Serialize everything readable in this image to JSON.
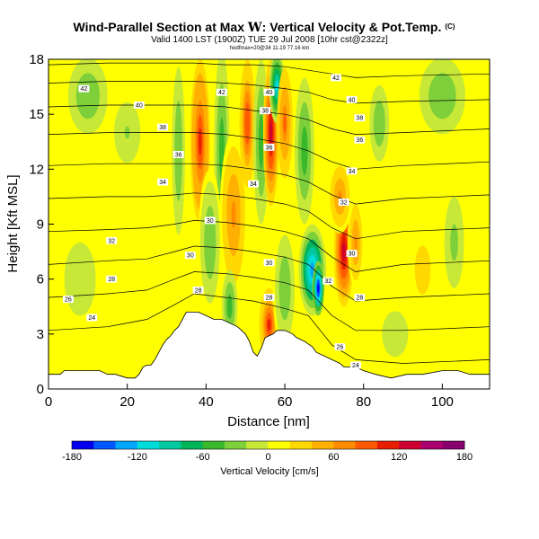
{
  "header": {
    "title_prefix": "Wind-Parallel Section at Max ",
    "title_symbol": "W",
    "title_suffix": ": Vertical Velocity & Pot.Temp.",
    "title_copyright": "(C)",
    "subtitle": "Valid 1400 LST (1900Z) TUE 29 Jul 2008 [10hr cst@2322z]",
    "tiny_line": "hodfmax=20@34 11.19 77.16 km"
  },
  "chart_data": {
    "type": "heatmap",
    "title": "Wind-Parallel Section at Max W: Vertical Velocity & Pot.Temp.",
    "xlabel": "Distance [nm]",
    "ylabel": "Height [Kft MSL]",
    "xlim": [
      0,
      112
    ],
    "ylim": [
      0,
      18
    ],
    "xticks": [
      0,
      20,
      40,
      60,
      80,
      100
    ],
    "yticks": [
      0,
      3,
      6,
      9,
      12,
      15,
      18
    ],
    "xtick_labels": [
      "0",
      "20",
      "40",
      "60",
      "80",
      "100"
    ],
    "ytick_labels": [
      "0",
      "3",
      "6",
      "9",
      "12",
      "15",
      "18"
    ],
    "fill_variable": "Vertical Velocity [cm/s]",
    "colorbar": {
      "label": "Vertical Velocity [cm/s]",
      "min": -180,
      "max": 180,
      "ticks": [
        -180,
        -120,
        -60,
        0,
        60,
        120,
        180
      ],
      "tick_labels": [
        "-180",
        "-120",
        "-60",
        "0",
        "60",
        "120",
        "180"
      ],
      "colors": [
        "#0000ee",
        "#0058ff",
        "#00a6ff",
        "#00dcdc",
        "#00c8a0",
        "#00b45a",
        "#3ab82c",
        "#7ed03a",
        "#c8e838",
        "#ffff00",
        "#ffd800",
        "#ffb000",
        "#ff8c00",
        "#ff5a00",
        "#e81e00",
        "#cc0030",
        "#aa0070",
        "#88006e"
      ]
    },
    "background_value": 8,
    "updrafts_downdrafts": [
      {
        "x": 33,
        "y": 13.0,
        "dx": 2.0,
        "dy": 5.5,
        "value": -40
      },
      {
        "x": 38.5,
        "y": 13.5,
        "dx": 2.5,
        "dy": 4.5,
        "value": 110
      },
      {
        "x": 44,
        "y": 13.0,
        "dx": 2.0,
        "dy": 5.5,
        "value": -50
      },
      {
        "x": 41,
        "y": 8.0,
        "dx": 3.0,
        "dy": 4.0,
        "value": -40
      },
      {
        "x": 47,
        "y": 9.5,
        "dx": 3.5,
        "dy": 4.5,
        "value": 70
      },
      {
        "x": 50.5,
        "y": 14.5,
        "dx": 2.0,
        "dy": 3.5,
        "value": 95
      },
      {
        "x": 54,
        "y": 13.5,
        "dx": 2.0,
        "dy": 4.5,
        "value": -60
      },
      {
        "x": 56.5,
        "y": 14.0,
        "dx": 2.0,
        "dy": 4.0,
        "value": 120
      },
      {
        "x": 58,
        "y": 16.5,
        "dx": 2.0,
        "dy": 2.0,
        "value": -110
      },
      {
        "x": 60,
        "y": 14.5,
        "dx": 2.0,
        "dy": 3.0,
        "value": 80
      },
      {
        "x": 65,
        "y": 13.0,
        "dx": 2.5,
        "dy": 4.0,
        "value": -50
      },
      {
        "x": 67,
        "y": 6.5,
        "dx": 3.5,
        "dy": 2.5,
        "value": -130
      },
      {
        "x": 68.5,
        "y": 5.5,
        "dx": 1.5,
        "dy": 1.5,
        "value": -175
      },
      {
        "x": 75,
        "y": 7.5,
        "dx": 2.5,
        "dy": 3.0,
        "value": 130
      },
      {
        "x": 74,
        "y": 10.5,
        "dx": 3.0,
        "dy": 2.0,
        "value": 70
      },
      {
        "x": 78,
        "y": 8.0,
        "dx": 2.0,
        "dy": 2.5,
        "value": 60
      },
      {
        "x": 56,
        "y": 3.5,
        "dx": 2.5,
        "dy": 2.0,
        "value": 100
      },
      {
        "x": 46,
        "y": 4.5,
        "dx": 2.0,
        "dy": 2.0,
        "value": -50
      },
      {
        "x": 60,
        "y": 5.5,
        "dx": 3.0,
        "dy": 3.5,
        "value": -40
      },
      {
        "x": 100,
        "y": 16.0,
        "dx": 7.0,
        "dy": 2.5,
        "value": -40
      },
      {
        "x": 84,
        "y": 14.5,
        "dx": 3.0,
        "dy": 2.5,
        "value": -40
      },
      {
        "x": 10,
        "y": 16.0,
        "dx": 6.0,
        "dy": 2.5,
        "value": -35
      },
      {
        "x": 20,
        "y": 14.0,
        "dx": 4.0,
        "dy": 2.0,
        "value": -25
      },
      {
        "x": 95,
        "y": 6.5,
        "dx": 3.0,
        "dy": 2.0,
        "value": 35
      },
      {
        "x": 103,
        "y": 8.0,
        "dx": 3.0,
        "dy": 3.0,
        "value": -30
      },
      {
        "x": 88,
        "y": 3.0,
        "dx": 4.0,
        "dy": 1.5,
        "value": -20
      },
      {
        "x": 8,
        "y": 6.0,
        "dx": 6.0,
        "dy": 3.0,
        "value": -15
      }
    ],
    "terrain": [
      [
        0,
        0.8
      ],
      [
        3,
        0.8
      ],
      [
        4,
        1.0
      ],
      [
        6,
        1.0
      ],
      [
        13,
        1.0
      ],
      [
        15,
        0.8
      ],
      [
        17,
        0.8
      ],
      [
        20,
        0.6
      ],
      [
        22,
        0.6
      ],
      [
        23,
        0.8
      ],
      [
        24,
        1.2
      ],
      [
        25,
        1.3
      ],
      [
        26,
        1.3
      ],
      [
        27,
        1.6
      ],
      [
        28,
        2.0
      ],
      [
        29,
        2.4
      ],
      [
        30,
        2.7
      ],
      [
        31,
        2.9
      ],
      [
        32,
        3.2
      ],
      [
        33,
        3.4
      ],
      [
        34,
        3.8
      ],
      [
        35,
        4.2
      ],
      [
        38,
        4.2
      ],
      [
        40,
        4.0
      ],
      [
        42,
        3.8
      ],
      [
        44,
        3.8
      ],
      [
        46,
        3.6
      ],
      [
        48,
        3.4
      ],
      [
        50,
        3.0
      ],
      [
        51,
        2.6
      ],
      [
        52,
        2.0
      ],
      [
        53,
        1.8
      ],
      [
        54,
        2.2
      ],
      [
        55,
        2.8
      ],
      [
        57,
        3.0
      ],
      [
        58,
        3.2
      ],
      [
        60,
        3.2
      ],
      [
        62,
        3.0
      ],
      [
        63,
        2.8
      ],
      [
        65,
        2.6
      ],
      [
        67,
        2.3
      ],
      [
        68,
        2.0
      ],
      [
        70,
        1.8
      ],
      [
        72,
        1.6
      ],
      [
        74,
        1.4
      ],
      [
        75,
        1.2
      ],
      [
        78,
        1.2
      ],
      [
        80,
        1.0
      ],
      [
        83,
        0.8
      ],
      [
        87,
        0.6
      ],
      [
        91,
        0.8
      ],
      [
        95,
        0.8
      ],
      [
        100,
        1.0
      ],
      [
        104,
        1.0
      ],
      [
        107,
        0.8
      ],
      [
        112,
        0.8
      ]
    ],
    "isentropes": [
      {
        "label": "24",
        "points": [
          [
            0,
            3.2
          ],
          [
            15,
            3.4
          ],
          [
            25,
            3.8
          ],
          [
            32,
            4.6
          ],
          [
            37,
            5.2
          ],
          [
            45,
            5.0
          ],
          [
            52,
            4.8
          ],
          [
            60,
            4.4
          ],
          [
            66,
            4.0
          ],
          [
            72,
            2.4
          ],
          [
            78,
            1.6
          ],
          [
            90,
            1.4
          ],
          [
            112,
            1.6
          ]
        ]
      },
      {
        "label": "26",
        "points": [
          [
            0,
            5.0
          ],
          [
            15,
            5.2
          ],
          [
            25,
            5.4
          ],
          [
            32,
            6.0
          ],
          [
            37,
            6.4
          ],
          [
            45,
            6.3
          ],
          [
            52,
            6.1
          ],
          [
            60,
            5.8
          ],
          [
            66,
            5.4
          ],
          [
            72,
            4.0
          ],
          [
            78,
            3.2
          ],
          [
            90,
            3.2
          ],
          [
            112,
            3.4
          ]
        ]
      },
      {
        "label": "28",
        "points": [
          [
            0,
            6.8
          ],
          [
            15,
            7.0
          ],
          [
            25,
            7.1
          ],
          [
            32,
            7.5
          ],
          [
            37,
            7.8
          ],
          [
            45,
            7.7
          ],
          [
            52,
            7.5
          ],
          [
            60,
            7.2
          ],
          [
            66,
            6.8
          ],
          [
            72,
            5.6
          ],
          [
            78,
            4.8
          ],
          [
            90,
            5.0
          ],
          [
            112,
            5.2
          ]
        ]
      },
      {
        "label": "30",
        "points": [
          [
            0,
            8.6
          ],
          [
            15,
            8.7
          ],
          [
            25,
            8.8
          ],
          [
            32,
            9.0
          ],
          [
            37,
            9.2
          ],
          [
            45,
            9.1
          ],
          [
            52,
            8.9
          ],
          [
            60,
            8.6
          ],
          [
            66,
            8.2
          ],
          [
            72,
            7.2
          ],
          [
            78,
            6.4
          ],
          [
            90,
            6.8
          ],
          [
            112,
            7.0
          ]
        ]
      },
      {
        "label": "32",
        "points": [
          [
            0,
            10.4
          ],
          [
            15,
            10.5
          ],
          [
            25,
            10.5
          ],
          [
            32,
            10.6
          ],
          [
            37,
            10.7
          ],
          [
            45,
            10.6
          ],
          [
            52,
            10.4
          ],
          [
            60,
            10.1
          ],
          [
            66,
            9.7
          ],
          [
            72,
            8.8
          ],
          [
            78,
            8.2
          ],
          [
            90,
            8.6
          ],
          [
            112,
            8.8
          ]
        ]
      },
      {
        "label": "34",
        "points": [
          [
            0,
            12.2
          ],
          [
            15,
            12.3
          ],
          [
            25,
            12.3
          ],
          [
            32,
            12.3
          ],
          [
            37,
            12.3
          ],
          [
            45,
            12.2
          ],
          [
            52,
            12.0
          ],
          [
            60,
            11.7
          ],
          [
            66,
            11.3
          ],
          [
            72,
            10.6
          ],
          [
            78,
            10.1
          ],
          [
            90,
            10.4
          ],
          [
            112,
            10.6
          ]
        ]
      },
      {
        "label": "36",
        "points": [
          [
            0,
            13.9
          ],
          [
            15,
            14.0
          ],
          [
            25,
            14.0
          ],
          [
            32,
            14.0
          ],
          [
            37,
            14.0
          ],
          [
            45,
            13.9
          ],
          [
            52,
            13.7
          ],
          [
            60,
            13.4
          ],
          [
            66,
            13.0
          ],
          [
            72,
            12.4
          ],
          [
            78,
            12.0
          ],
          [
            90,
            12.2
          ],
          [
            112,
            12.4
          ]
        ]
      },
      {
        "label": "38",
        "points": [
          [
            0,
            15.4
          ],
          [
            15,
            15.5
          ],
          [
            25,
            15.5
          ],
          [
            32,
            15.5
          ],
          [
            37,
            15.5
          ],
          [
            45,
            15.4
          ],
          [
            52,
            15.2
          ],
          [
            60,
            15.0
          ],
          [
            66,
            14.7
          ],
          [
            72,
            14.2
          ],
          [
            78,
            13.9
          ],
          [
            90,
            14.0
          ],
          [
            112,
            14.2
          ]
        ]
      },
      {
        "label": "40",
        "points": [
          [
            0,
            16.7
          ],
          [
            15,
            16.8
          ],
          [
            25,
            16.8
          ],
          [
            32,
            16.8
          ],
          [
            37,
            16.8
          ],
          [
            45,
            16.7
          ],
          [
            52,
            16.6
          ],
          [
            60,
            16.4
          ],
          [
            66,
            16.2
          ],
          [
            72,
            15.8
          ],
          [
            78,
            15.6
          ],
          [
            90,
            15.7
          ],
          [
            112,
            15.8
          ]
        ]
      },
      {
        "label": "42",
        "points": [
          [
            0,
            17.7
          ],
          [
            15,
            17.8
          ],
          [
            25,
            17.8
          ],
          [
            32,
            17.8
          ],
          [
            37,
            17.8
          ],
          [
            45,
            17.7
          ],
          [
            52,
            17.7
          ],
          [
            60,
            17.6
          ],
          [
            66,
            17.4
          ],
          [
            72,
            17.2
          ],
          [
            78,
            17.0
          ],
          [
            90,
            17.1
          ],
          [
            112,
            17.2
          ]
        ]
      }
    ],
    "contour_labels": [
      {
        "text": "42",
        "x": 9,
        "y": 16.4
      },
      {
        "text": "40",
        "x": 23,
        "y": 15.5
      },
      {
        "text": "38",
        "x": 29,
        "y": 14.3
      },
      {
        "text": "36",
        "x": 33,
        "y": 12.8
      },
      {
        "text": "34",
        "x": 29,
        "y": 11.3
      },
      {
        "text": "32",
        "x": 16,
        "y": 8.1
      },
      {
        "text": "30",
        "x": 36,
        "y": 7.3
      },
      {
        "text": "28",
        "x": 16,
        "y": 6.0
      },
      {
        "text": "26",
        "x": 5,
        "y": 4.9
      },
      {
        "text": "24",
        "x": 11,
        "y": 3.9
      },
      {
        "text": "28",
        "x": 38,
        "y": 5.4
      },
      {
        "text": "30",
        "x": 41,
        "y": 9.2
      },
      {
        "text": "42",
        "x": 44,
        "y": 16.2
      },
      {
        "text": "40",
        "x": 56,
        "y": 16.2
      },
      {
        "text": "38",
        "x": 55,
        "y": 15.2
      },
      {
        "text": "36",
        "x": 56,
        "y": 13.2
      },
      {
        "text": "34",
        "x": 52,
        "y": 11.2
      },
      {
        "text": "30",
        "x": 56,
        "y": 6.9
      },
      {
        "text": "28",
        "x": 56,
        "y": 5.0
      },
      {
        "text": "32",
        "x": 71,
        "y": 5.9
      },
      {
        "text": "30",
        "x": 77,
        "y": 7.4
      },
      {
        "text": "28",
        "x": 79,
        "y": 5.0
      },
      {
        "text": "32",
        "x": 75,
        "y": 10.2
      },
      {
        "text": "34",
        "x": 77,
        "y": 11.9
      },
      {
        "text": "36",
        "x": 79,
        "y": 13.6
      },
      {
        "text": "38",
        "x": 79,
        "y": 14.8
      },
      {
        "text": "40",
        "x": 77,
        "y": 15.8
      },
      {
        "text": "42",
        "x": 73,
        "y": 17.0
      },
      {
        "text": "26",
        "x": 74,
        "y": 2.3
      },
      {
        "text": "24",
        "x": 78,
        "y": 1.3
      }
    ]
  }
}
